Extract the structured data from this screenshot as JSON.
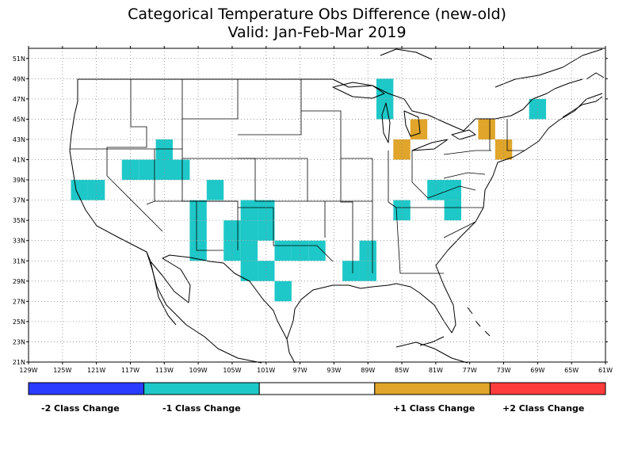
{
  "title": "Categorical Temperature Obs Difference (new-old)",
  "subtitle": "Valid: Jan-Feb-Mar 2019",
  "axes": {
    "lon_ticks": [
      "129W",
      "125W",
      "121W",
      "117W",
      "113W",
      "109W",
      "105W",
      "101W",
      "97W",
      "93W",
      "89W",
      "85W",
      "81W",
      "77W",
      "73W",
      "69W",
      "65W",
      "61W"
    ],
    "lat_ticks": [
      "21N",
      "23N",
      "25N",
      "27N",
      "29N",
      "31N",
      "33N",
      "35N",
      "37N",
      "39N",
      "41N",
      "43N",
      "45N",
      "47N",
      "49N",
      "51N"
    ]
  },
  "colors": {
    "minus2": "#2a3cff",
    "minus1": "#1ec8c8",
    "zero": "#ffffff",
    "plus1": "#e0a52a",
    "plus2": "#ff3c3c"
  },
  "legend": {
    "minus2_label": "-2 Class Change",
    "minus1_label": "-1 Class Change",
    "plus1_label": "+1 Class Change",
    "plus2_label": "+2 Class Change"
  },
  "chart_data": {
    "type": "heatmap",
    "cell_size_deg": 2,
    "lon_range": [
      -129,
      -61
    ],
    "lat_range": [
      21,
      52
    ],
    "cells": [
      {
        "lon": -87,
        "lat": 48,
        "change": -1
      },
      {
        "lon": -87,
        "lat": 46,
        "change": -1
      },
      {
        "lon": -69,
        "lat": 46,
        "change": -1
      },
      {
        "lon": -113,
        "lat": 42,
        "change": -1
      },
      {
        "lon": -117,
        "lat": 40,
        "change": -1
      },
      {
        "lon": -115,
        "lat": 40,
        "change": -1
      },
      {
        "lon": -113,
        "lat": 40,
        "change": -1
      },
      {
        "lon": -111,
        "lat": 40,
        "change": -1
      },
      {
        "lon": -123,
        "lat": 38,
        "change": -1
      },
      {
        "lon": -121,
        "lat": 38,
        "change": -1
      },
      {
        "lon": -107,
        "lat": 38,
        "change": -1
      },
      {
        "lon": -81,
        "lat": 38,
        "change": -1
      },
      {
        "lon": -79,
        "lat": 38,
        "change": -1
      },
      {
        "lon": -109,
        "lat": 36,
        "change": -1
      },
      {
        "lon": -103,
        "lat": 36,
        "change": -1
      },
      {
        "lon": -101,
        "lat": 36,
        "change": -1
      },
      {
        "lon": -85,
        "lat": 36,
        "change": -1
      },
      {
        "lon": -79,
        "lat": 36,
        "change": -1
      },
      {
        "lon": -109,
        "lat": 34,
        "change": -1
      },
      {
        "lon": -105,
        "lat": 34,
        "change": -1
      },
      {
        "lon": -103,
        "lat": 34,
        "change": -1
      },
      {
        "lon": -101,
        "lat": 34,
        "change": -1
      },
      {
        "lon": -109,
        "lat": 32,
        "change": -1
      },
      {
        "lon": -105,
        "lat": 32,
        "change": -1
      },
      {
        "lon": -103,
        "lat": 32,
        "change": -1
      },
      {
        "lon": -99,
        "lat": 32,
        "change": -1
      },
      {
        "lon": -97,
        "lat": 32,
        "change": -1
      },
      {
        "lon": -95,
        "lat": 32,
        "change": -1
      },
      {
        "lon": -89,
        "lat": 32,
        "change": -1
      },
      {
        "lon": -103,
        "lat": 30,
        "change": -1
      },
      {
        "lon": -101,
        "lat": 30,
        "change": -1
      },
      {
        "lon": -91,
        "lat": 30,
        "change": -1
      },
      {
        "lon": -89,
        "lat": 30,
        "change": -1
      },
      {
        "lon": -99,
        "lat": 28,
        "change": -1
      },
      {
        "lon": -83,
        "lat": 44,
        "change": 1
      },
      {
        "lon": -75,
        "lat": 44,
        "change": 1
      },
      {
        "lon": -85,
        "lat": 42,
        "change": 1
      },
      {
        "lon": -73,
        "lat": 42,
        "change": 1
      }
    ]
  }
}
